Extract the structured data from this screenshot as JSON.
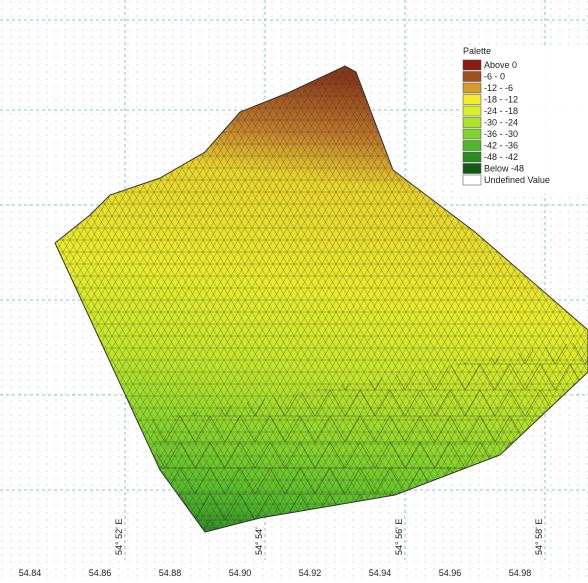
{
  "legend": {
    "title": "Palette",
    "items": [
      {
        "label": "Above  0",
        "color": "#8b1a10"
      },
      {
        "label": "-6 -  0",
        "color": "#a0501c"
      },
      {
        "label": "-12 - -6",
        "color": "#d89a2a"
      },
      {
        "label": "-18 - -12",
        "color": "#f2ec2a"
      },
      {
        "label": "-24 - -18",
        "color": "#d8f02a"
      },
      {
        "label": "-30 - -24",
        "color": "#a8e42a"
      },
      {
        "label": "-36 - -30",
        "color": "#7ed62a"
      },
      {
        "label": "-42 - -36",
        "color": "#4cb82a"
      },
      {
        "label": "-48 - -42",
        "color": "#2a8c22"
      },
      {
        "label": "Below -48",
        "color": "#145a14"
      },
      {
        "label": "Undefined Value",
        "color": "#ffffff"
      }
    ]
  },
  "bottom_labels": [
    "54.84",
    "54.86",
    "54.88",
    "54.90",
    "54.92",
    "54.94",
    "54.96",
    "54.98"
  ],
  "meridian_labels": [
    "54° 52' E",
    "54° 54'",
    "54° 56' E",
    "54° 58' E"
  ]
}
